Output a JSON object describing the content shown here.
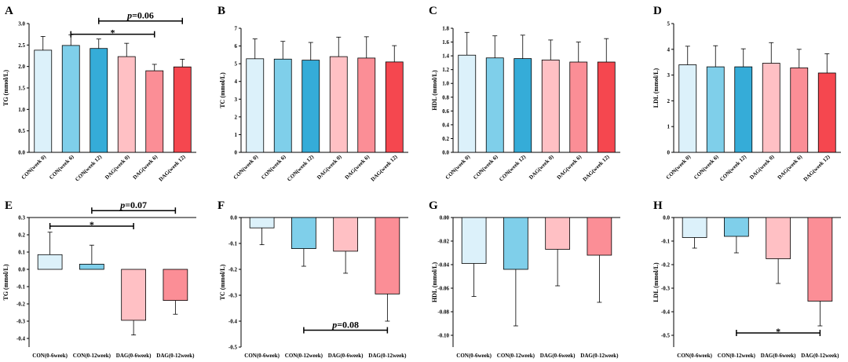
{
  "colors": {
    "bar_top": [
      "#dcf1fa",
      "#7fcfea",
      "#35acd8",
      "#ffc0c4",
      "#fb8e96",
      "#f5474f"
    ],
    "bar_bottom": [
      "#dcf1fa",
      "#7fcfea",
      "#ffc0c4",
      "#fb8e96"
    ]
  },
  "chart_data": [
    {
      "panel": "A",
      "type": "bar",
      "ylabel": "TG (mmol/L)",
      "categories": [
        "CON(week 0)",
        "CON(week 6)",
        "CON(week 12)",
        "DAG(week 0)",
        "DAG(week 6)",
        "DAG(week 12)"
      ],
      "values": [
        2.38,
        2.49,
        2.42,
        2.23,
        1.9,
        1.99
      ],
      "errors": [
        0.32,
        0.25,
        0.22,
        0.31,
        0.15,
        0.18
      ],
      "ylim": [
        0,
        3
      ],
      "yticks": [
        "0.0",
        "0.5",
        "1.0",
        "1.5",
        "2.0",
        "2.5",
        "3.0"
      ],
      "significance": [
        {
          "from": 1,
          "to": 4,
          "value": 2.75,
          "label": "*"
        },
        {
          "from": 2,
          "to": 5,
          "value": 3.06,
          "label": "p=0.06"
        }
      ]
    },
    {
      "panel": "B",
      "type": "bar",
      "ylabel": "TC (mmol/L)",
      "categories": [
        "CON(week 0)",
        "CON(week 6)",
        "CON(week 12)",
        "DAG(week 0)",
        "DAG(week 6)",
        "DAG(week 12)"
      ],
      "values": [
        5.28,
        5.26,
        5.2,
        5.4,
        5.32,
        5.1
      ],
      "errors": [
        1.12,
        1.0,
        1.0,
        1.1,
        1.2,
        0.92
      ],
      "ylim": [
        0,
        7
      ],
      "yticks": [
        "0",
        "1",
        "2",
        "3",
        "4",
        "5",
        "6",
        "7"
      ],
      "significance": []
    },
    {
      "panel": "C",
      "type": "bar",
      "ylabel": "HDL (mmol/L)",
      "categories": [
        "CON(week 0)",
        "CON(week 6)",
        "CON(week 12)",
        "DAG(week 0)",
        "DAG(week 6)",
        "DAG(week 12)"
      ],
      "values": [
        1.41,
        1.37,
        1.36,
        1.34,
        1.31,
        1.31
      ],
      "errors": [
        0.33,
        0.32,
        0.34,
        0.29,
        0.29,
        0.34
      ],
      "ylim": [
        0,
        1.8
      ],
      "yticks": [
        "0.0",
        "0.2",
        "0.4",
        "0.6",
        "0.8",
        "1.0",
        "1.2",
        "1.4",
        "1.6",
        "1.8"
      ],
      "significance": []
    },
    {
      "panel": "D",
      "type": "bar",
      "ylabel": "LDL (mmol/L)",
      "categories": [
        "CON(week 0)",
        "CON(week 6)",
        "CON(week 12)",
        "DAG(week 0)",
        "DAG(week 6)",
        "DAG(week 12)"
      ],
      "values": [
        3.4,
        3.32,
        3.32,
        3.46,
        3.28,
        3.08
      ],
      "errors": [
        0.72,
        0.82,
        0.7,
        0.8,
        0.72,
        0.75
      ],
      "ylim": [
        0,
        5
      ],
      "yticks": [
        "0",
        "1",
        "2",
        "3",
        "4",
        "5"
      ],
      "significance": []
    },
    {
      "panel": "E",
      "type": "bar",
      "ylabel": "TG (mmol/L)",
      "categories": [
        "CON(0-6week)",
        "CON(0-12week)",
        "DAG(0-6week)",
        "DAG(0-12week)"
      ],
      "values": [
        0.085,
        0.03,
        -0.295,
        -0.18
      ],
      "errors": [
        0.13,
        0.11,
        0.085,
        0.08
      ],
      "ylim": [
        -0.45,
        0.3
      ],
      "yticks": [
        "-0.4",
        "-0.3",
        "-0.2",
        "-0.1",
        "0.0",
        "0.1",
        "0.2",
        "0.3"
      ],
      "significance": [
        {
          "from": 0,
          "to": 2,
          "value": 0.25,
          "label": "*"
        },
        {
          "from": 1,
          "to": 3,
          "value": 0.34,
          "label": "p=0.07"
        }
      ]
    },
    {
      "panel": "F",
      "type": "bar",
      "ylabel": "TC (mmol/L)",
      "categories": [
        "CON(0-6week)",
        "CON(0-12week)",
        "DAG(0-6week)",
        "DAG(0-12week)"
      ],
      "values": [
        -0.04,
        -0.12,
        -0.13,
        -0.295
      ],
      "errors": [
        0.065,
        0.068,
        0.085,
        0.105
      ],
      "ylim": [
        -0.5,
        0
      ],
      "yticks": [
        "-0.5",
        "-0.4",
        "-0.3",
        "-0.2",
        "-0.1",
        "0.0"
      ],
      "significance": [
        {
          "from": 1,
          "to": 3,
          "value": -0.435,
          "label": "p=0.08"
        }
      ]
    },
    {
      "panel": "G",
      "type": "bar",
      "ylabel": "HDL (mmol/L)",
      "categories": [
        "CON(0-6week)",
        "CON(0-12week)",
        "DAG(0-6week)",
        "DAG(0-12week)"
      ],
      "values": [
        -0.039,
        -0.044,
        -0.027,
        -0.032
      ],
      "errors": [
        0.028,
        0.048,
        0.031,
        0.04
      ],
      "ylim": [
        -0.11,
        0
      ],
      "yticks": [
        "-0.10",
        "-0.08",
        "-0.06",
        "-0.04",
        "-0.02",
        "0.00"
      ],
      "significance": []
    },
    {
      "panel": "H",
      "type": "bar",
      "ylabel": "LDL (mmol/L)",
      "categories": [
        "CON(0-6week)",
        "CON(0-12week)",
        "DAG(0-6week)",
        "DAG(0-12week)"
      ],
      "values": [
        -0.085,
        -0.08,
        -0.175,
        -0.355
      ],
      "errors": [
        0.045,
        0.07,
        0.105,
        0.105
      ],
      "ylim": [
        -0.55,
        0
      ],
      "yticks": [
        "-0.5",
        "-0.4",
        "-0.3",
        "-0.2",
        "-0.1",
        "0.0"
      ],
      "significance": [
        {
          "from": 1,
          "to": 3,
          "value": -0.49,
          "label": "*"
        }
      ]
    }
  ]
}
